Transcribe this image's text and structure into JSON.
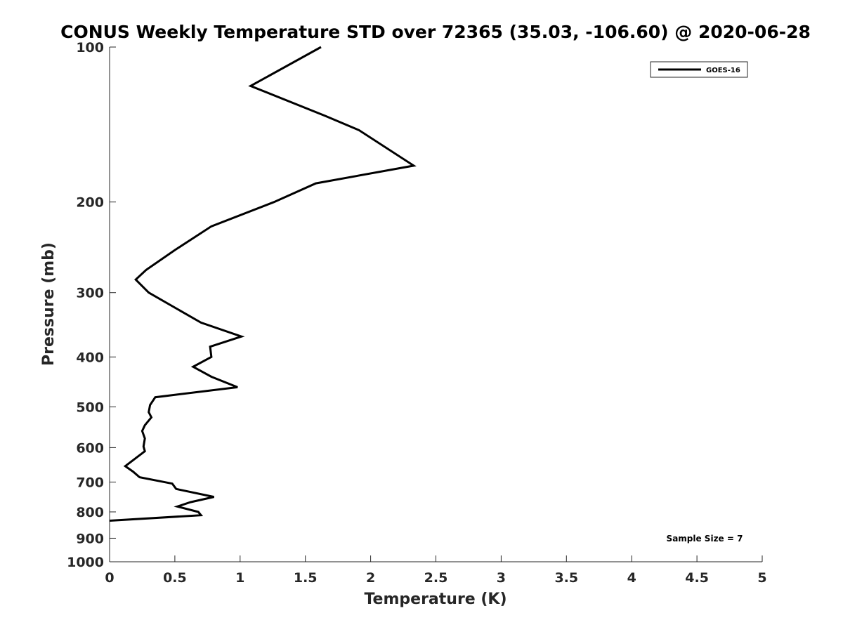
{
  "chart_data": {
    "type": "line",
    "title": "CONUS Weekly Temperature STD over 72365 (35.03, -106.60) @ 2020-06-28",
    "xlabel": "Temperature (K)",
    "ylabel": "Pressure (mb)",
    "xlim": [
      0,
      5
    ],
    "ylim": [
      100,
      1000
    ],
    "y_scale": "log",
    "y_direction": "reversed",
    "x_ticks": [
      "0",
      "0.5",
      "1",
      "1.5",
      "2",
      "2.5",
      "3",
      "3.5",
      "4",
      "4.5",
      "5"
    ],
    "y_ticks": [
      "100",
      "200",
      "300",
      "400",
      "500",
      "600",
      "700",
      "800",
      "900",
      "1000"
    ],
    "grid": false,
    "legend_position": "top-right",
    "annotation": "Sample Size = 7",
    "series": [
      {
        "name": "GOES-16",
        "color": "#000000",
        "points": [
          {
            "x": 1.62,
            "p": 100
          },
          {
            "x": 1.08,
            "p": 119
          },
          {
            "x": 1.65,
            "p": 136
          },
          {
            "x": 1.91,
            "p": 145
          },
          {
            "x": 2.33,
            "p": 170
          },
          {
            "x": 1.58,
            "p": 184
          },
          {
            "x": 1.26,
            "p": 200
          },
          {
            "x": 0.78,
            "p": 223
          },
          {
            "x": 0.5,
            "p": 248
          },
          {
            "x": 0.28,
            "p": 271
          },
          {
            "x": 0.2,
            "p": 283
          },
          {
            "x": 0.3,
            "p": 300
          },
          {
            "x": 0.7,
            "p": 343
          },
          {
            "x": 1.01,
            "p": 365
          },
          {
            "x": 0.77,
            "p": 382
          },
          {
            "x": 0.78,
            "p": 400
          },
          {
            "x": 0.64,
            "p": 418
          },
          {
            "x": 0.78,
            "p": 437
          },
          {
            "x": 0.98,
            "p": 458
          },
          {
            "x": 0.35,
            "p": 479
          },
          {
            "x": 0.31,
            "p": 496
          },
          {
            "x": 0.3,
            "p": 512
          },
          {
            "x": 0.32,
            "p": 524
          },
          {
            "x": 0.27,
            "p": 543
          },
          {
            "x": 0.25,
            "p": 557
          },
          {
            "x": 0.27,
            "p": 576
          },
          {
            "x": 0.26,
            "p": 597
          },
          {
            "x": 0.27,
            "p": 610
          },
          {
            "x": 0.12,
            "p": 652
          },
          {
            "x": 0.18,
            "p": 668
          },
          {
            "x": 0.23,
            "p": 685
          },
          {
            "x": 0.48,
            "p": 705
          },
          {
            "x": 0.51,
            "p": 722
          },
          {
            "x": 0.8,
            "p": 748
          },
          {
            "x": 0.62,
            "p": 766
          },
          {
            "x": 0.52,
            "p": 781
          },
          {
            "x": 0.68,
            "p": 800
          },
          {
            "x": 0.7,
            "p": 812
          },
          {
            "x": 0.0,
            "p": 832
          }
        ]
      }
    ]
  }
}
